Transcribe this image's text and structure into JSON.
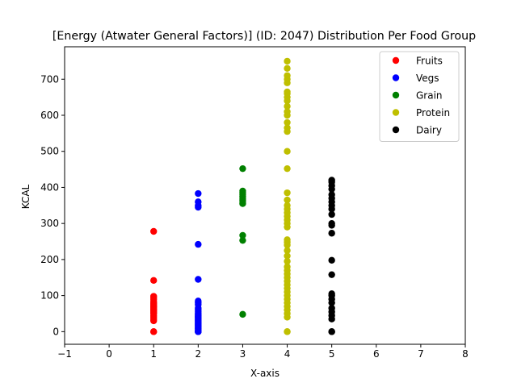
{
  "chart_data": {
    "type": "scatter",
    "title": "[Energy (Atwater General Factors)] (ID: 2047) Distribution Per Food Group",
    "xlabel": "X-axis",
    "ylabel": "KCAL",
    "xlim": [
      -1,
      8
    ],
    "ylim": [
      -35,
      790
    ],
    "xticks": [
      -1,
      0,
      1,
      2,
      3,
      4,
      5,
      6,
      7,
      8
    ],
    "yticks": [
      0,
      100,
      200,
      300,
      400,
      500,
      600,
      700
    ],
    "grid": false,
    "legend_position": "top-right",
    "series": [
      {
        "name": "Fruits",
        "color": "#ff0000",
        "x": 1,
        "values": [
          0,
          0,
          30,
          35,
          40,
          45,
          50,
          52,
          55,
          58,
          60,
          62,
          65,
          68,
          70,
          72,
          75,
          78,
          80,
          85,
          90,
          95,
          98,
          142,
          278
        ]
      },
      {
        "name": "Vegs",
        "color": "#0000ff",
        "x": 2,
        "values": [
          0,
          0,
          0,
          2,
          5,
          8,
          10,
          12,
          15,
          18,
          20,
          22,
          25,
          28,
          30,
          32,
          35,
          38,
          40,
          42,
          45,
          48,
          50,
          55,
          60,
          65,
          75,
          80,
          85,
          145,
          242,
          345,
          350,
          360,
          383
        ]
      },
      {
        "name": "Grain",
        "color": "#008000",
        "x": 3,
        "values": [
          48,
          253,
          267,
          355,
          360,
          365,
          370,
          375,
          380,
          385,
          390,
          452
        ]
      },
      {
        "name": "Protein",
        "color": "#bfbf00",
        "x": 4,
        "values": [
          0,
          0,
          40,
          50,
          60,
          70,
          80,
          90,
          100,
          110,
          120,
          130,
          140,
          150,
          160,
          170,
          180,
          195,
          210,
          225,
          240,
          248,
          255,
          290,
          300,
          310,
          320,
          330,
          340,
          350,
          365,
          385,
          452,
          500,
          555,
          565,
          580,
          600,
          610,
          625,
          640,
          650,
          660,
          665,
          690,
          700,
          710,
          730,
          750
        ]
      },
      {
        "name": "Dairy",
        "color": "#000000",
        "x": 5,
        "values": [
          0,
          0,
          35,
          45,
          55,
          65,
          80,
          90,
          100,
          105,
          158,
          198,
          273,
          295,
          300,
          325,
          340,
          350,
          360,
          370,
          380,
          395,
          405,
          415,
          420
        ]
      }
    ]
  }
}
